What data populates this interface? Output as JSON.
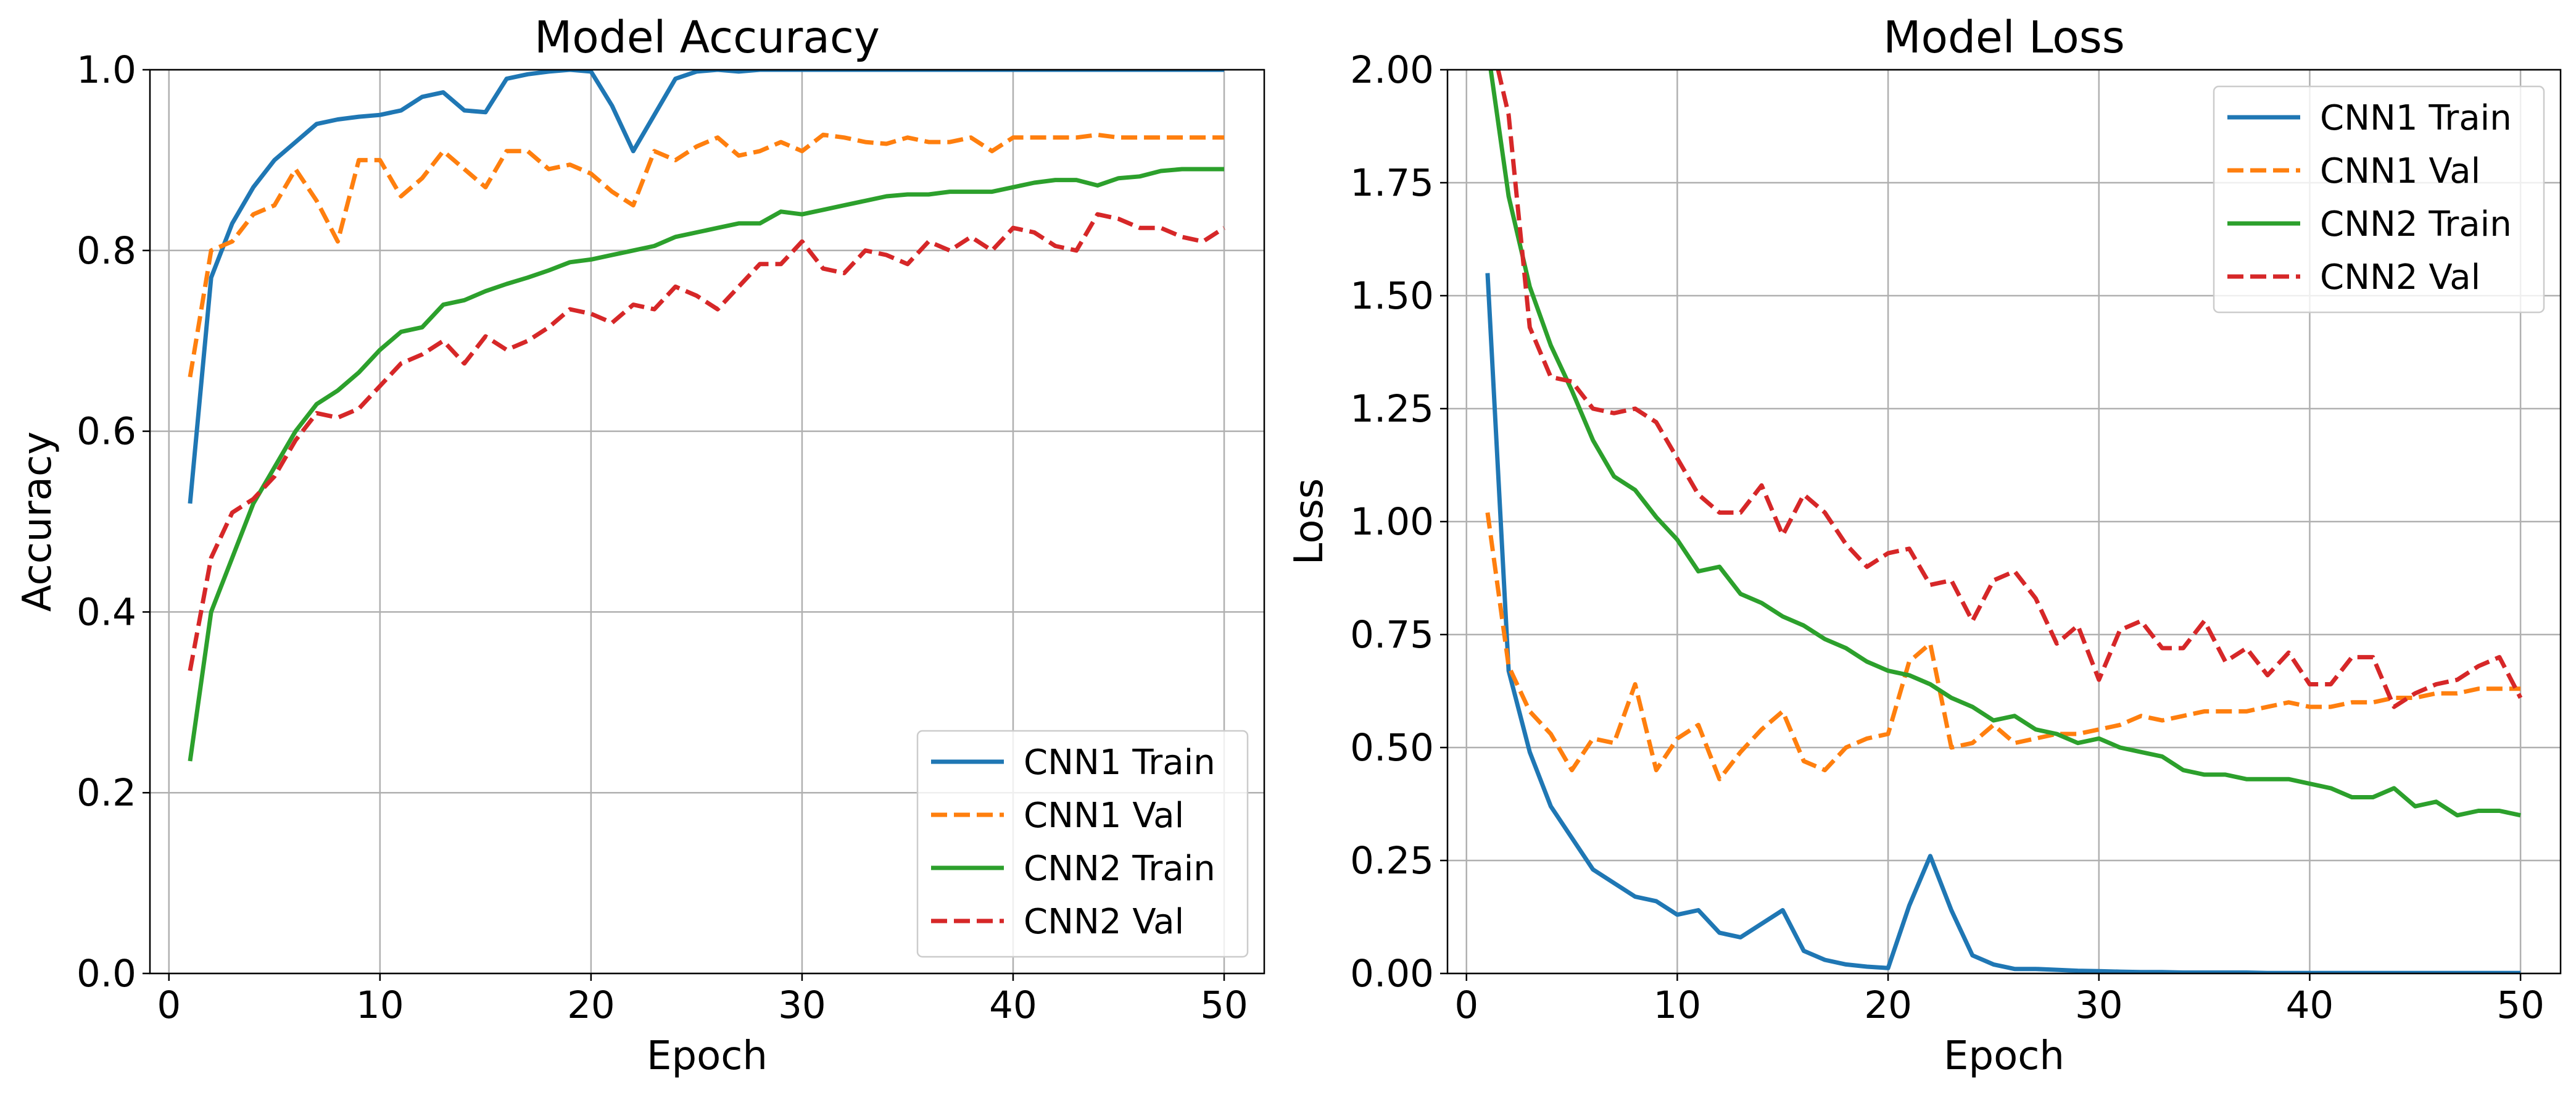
{
  "figure": {
    "background": "#ffffff"
  },
  "chart_data": [
    {
      "type": "line",
      "title": "Model Accuracy",
      "xlabel": "Epoch",
      "ylabel": "Accuracy",
      "xlim": [
        -0.9,
        51.9
      ],
      "ylim": [
        0,
        1
      ],
      "x_ticks": [
        0,
        10,
        20,
        30,
        40,
        50
      ],
      "x_tick_labels": [
        "0",
        "10",
        "20",
        "30",
        "40",
        "50"
      ],
      "y_ticks": [
        0,
        0.2,
        0.4,
        0.6,
        0.8,
        1.0
      ],
      "y_tick_labels": [
        "0.0",
        "0.2",
        "0.4",
        "0.6",
        "0.8",
        "1.0"
      ],
      "grid": true,
      "legend_position": "lower right",
      "x": [
        1,
        2,
        3,
        4,
        5,
        6,
        7,
        8,
        9,
        10,
        11,
        12,
        13,
        14,
        15,
        16,
        17,
        18,
        19,
        20,
        21,
        22,
        23,
        24,
        25,
        26,
        27,
        28,
        29,
        30,
        31,
        32,
        33,
        34,
        35,
        36,
        37,
        38,
        39,
        40,
        41,
        42,
        43,
        44,
        45,
        46,
        47,
        48,
        49,
        50
      ],
      "series": [
        {
          "name": "CNN1 Train",
          "color": "#1f77b4",
          "dash": "solid",
          "values": [
            0.52,
            0.77,
            0.83,
            0.87,
            0.9,
            0.92,
            0.94,
            0.945,
            0.948,
            0.95,
            0.955,
            0.97,
            0.975,
            0.955,
            0.953,
            0.99,
            0.995,
            0.998,
            1.0,
            0.998,
            0.96,
            0.91,
            0.95,
            0.99,
            0.998,
            1.0,
            0.998,
            1.0,
            1.0,
            1.0,
            1.0,
            1.0,
            1.0,
            1.0,
            1.0,
            1.0,
            1.0,
            1.0,
            1.0,
            1.0,
            1.0,
            1.0,
            1.0,
            1.0,
            1.0,
            1.0,
            1.0,
            1.0,
            1.0,
            1.0
          ]
        },
        {
          "name": "CNN1 Val",
          "color": "#ff7f0e",
          "dash": "dashed",
          "values": [
            0.66,
            0.8,
            0.81,
            0.84,
            0.85,
            0.89,
            0.855,
            0.81,
            0.9,
            0.9,
            0.86,
            0.88,
            0.91,
            0.89,
            0.87,
            0.91,
            0.91,
            0.89,
            0.895,
            0.885,
            0.865,
            0.85,
            0.91,
            0.9,
            0.915,
            0.925,
            0.905,
            0.91,
            0.92,
            0.91,
            0.928,
            0.925,
            0.92,
            0.918,
            0.925,
            0.92,
            0.92,
            0.925,
            0.91,
            0.925,
            0.925,
            0.925,
            0.925,
            0.928,
            0.925,
            0.925,
            0.925,
            0.925,
            0.925,
            0.925
          ]
        },
        {
          "name": "CNN2 Train",
          "color": "#2ca02c",
          "dash": "solid",
          "values": [
            0.235,
            0.4,
            0.46,
            0.52,
            0.56,
            0.6,
            0.63,
            0.645,
            0.665,
            0.69,
            0.71,
            0.715,
            0.74,
            0.745,
            0.755,
            0.763,
            0.77,
            0.778,
            0.787,
            0.79,
            0.795,
            0.8,
            0.805,
            0.815,
            0.82,
            0.825,
            0.83,
            0.83,
            0.843,
            0.84,
            0.845,
            0.85,
            0.855,
            0.86,
            0.862,
            0.862,
            0.865,
            0.865,
            0.865,
            0.87,
            0.875,
            0.878,
            0.878,
            0.872,
            0.88,
            0.882,
            0.888,
            0.89,
            0.89,
            0.89
          ]
        },
        {
          "name": "CNN2 Val",
          "color": "#d62728",
          "dash": "dashed",
          "values": [
            0.335,
            0.46,
            0.51,
            0.525,
            0.55,
            0.59,
            0.62,
            0.615,
            0.625,
            0.65,
            0.675,
            0.685,
            0.7,
            0.675,
            0.705,
            0.69,
            0.7,
            0.715,
            0.735,
            0.73,
            0.72,
            0.74,
            0.735,
            0.76,
            0.75,
            0.735,
            0.76,
            0.785,
            0.785,
            0.81,
            0.78,
            0.775,
            0.8,
            0.795,
            0.785,
            0.81,
            0.8,
            0.815,
            0.8,
            0.825,
            0.82,
            0.805,
            0.8,
            0.84,
            0.835,
            0.825,
            0.825,
            0.815,
            0.81,
            0.825
          ]
        }
      ]
    },
    {
      "type": "line",
      "title": "Model Loss",
      "xlabel": "Epoch",
      "ylabel": "Loss",
      "xlim": [
        -0.9,
        51.9
      ],
      "ylim": [
        0,
        2
      ],
      "x_ticks": [
        0,
        10,
        20,
        30,
        40,
        50
      ],
      "x_tick_labels": [
        "0",
        "10",
        "20",
        "30",
        "40",
        "50"
      ],
      "y_ticks": [
        0,
        0.25,
        0.5,
        0.75,
        1.0,
        1.25,
        1.5,
        1.75,
        2.0
      ],
      "y_tick_labels": [
        "0.00",
        "0.25",
        "0.50",
        "0.75",
        "1.00",
        "1.25",
        "1.50",
        "1.75",
        "2.00"
      ],
      "grid": true,
      "legend_position": "upper right",
      "x": [
        1,
        2,
        3,
        4,
        5,
        6,
        7,
        8,
        9,
        10,
        11,
        12,
        13,
        14,
        15,
        16,
        17,
        18,
        19,
        20,
        21,
        22,
        23,
        24,
        25,
        26,
        27,
        28,
        29,
        30,
        31,
        32,
        33,
        34,
        35,
        36,
        37,
        38,
        39,
        40,
        41,
        42,
        43,
        44,
        45,
        46,
        47,
        48,
        49,
        50
      ],
      "series": [
        {
          "name": "CNN1 Train",
          "color": "#1f77b4",
          "dash": "solid",
          "values": [
            1.55,
            0.67,
            0.49,
            0.37,
            0.3,
            0.23,
            0.2,
            0.17,
            0.16,
            0.13,
            0.14,
            0.09,
            0.08,
            0.11,
            0.14,
            0.05,
            0.03,
            0.02,
            0.015,
            0.012,
            0.15,
            0.26,
            0.14,
            0.04,
            0.02,
            0.01,
            0.01,
            0.008,
            0.006,
            0.005,
            0.004,
            0.003,
            0.003,
            0.002,
            0.002,
            0.002,
            0.002,
            0.001,
            0.001,
            0.001,
            0.001,
            0.001,
            0.001,
            0.001,
            0.001,
            0.001,
            0.001,
            0.001,
            0.001,
            0.001
          ]
        },
        {
          "name": "CNN1 Val",
          "color": "#ff7f0e",
          "dash": "dashed",
          "values": [
            1.02,
            0.68,
            0.58,
            0.53,
            0.45,
            0.52,
            0.51,
            0.64,
            0.45,
            0.52,
            0.55,
            0.43,
            0.49,
            0.54,
            0.58,
            0.47,
            0.45,
            0.5,
            0.52,
            0.53,
            0.69,
            0.73,
            0.5,
            0.51,
            0.55,
            0.51,
            0.52,
            0.53,
            0.53,
            0.54,
            0.55,
            0.57,
            0.56,
            0.57,
            0.58,
            0.58,
            0.58,
            0.59,
            0.6,
            0.59,
            0.59,
            0.6,
            0.6,
            0.61,
            0.61,
            0.62,
            0.62,
            0.63,
            0.63,
            0.63
          ]
        },
        {
          "name": "CNN2 Train",
          "color": "#2ca02c",
          "dash": "solid",
          "values": [
            2.05,
            1.72,
            1.52,
            1.39,
            1.29,
            1.18,
            1.1,
            1.07,
            1.01,
            0.96,
            0.89,
            0.9,
            0.84,
            0.82,
            0.79,
            0.77,
            0.74,
            0.72,
            0.69,
            0.67,
            0.66,
            0.64,
            0.61,
            0.59,
            0.56,
            0.57,
            0.54,
            0.53,
            0.51,
            0.52,
            0.5,
            0.49,
            0.48,
            0.45,
            0.44,
            0.44,
            0.43,
            0.43,
            0.43,
            0.42,
            0.41,
            0.39,
            0.39,
            0.41,
            0.37,
            0.38,
            0.35,
            0.36,
            0.36,
            0.35
          ]
        },
        {
          "name": "CNN2 Val",
          "color": "#d62728",
          "dash": "dashed",
          "values": [
            2.1,
            1.9,
            1.43,
            1.32,
            1.31,
            1.25,
            1.24,
            1.25,
            1.22,
            1.14,
            1.06,
            1.02,
            1.02,
            1.08,
            0.97,
            1.06,
            1.02,
            0.95,
            0.9,
            0.93,
            0.94,
            0.86,
            0.87,
            0.78,
            0.87,
            0.89,
            0.83,
            0.73,
            0.77,
            0.65,
            0.76,
            0.78,
            0.72,
            0.72,
            0.78,
            0.69,
            0.72,
            0.66,
            0.71,
            0.64,
            0.64,
            0.7,
            0.7,
            0.59,
            0.62,
            0.64,
            0.65,
            0.68,
            0.7,
            0.61
          ]
        }
      ]
    }
  ]
}
